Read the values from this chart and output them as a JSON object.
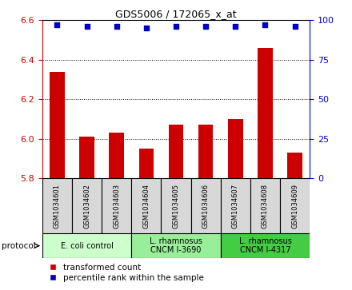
{
  "title": "GDS5006 / 172065_x_at",
  "samples": [
    "GSM1034601",
    "GSM1034602",
    "GSM1034603",
    "GSM1034604",
    "GSM1034605",
    "GSM1034606",
    "GSM1034607",
    "GSM1034608",
    "GSM1034609"
  ],
  "transformed_count": [
    6.34,
    6.01,
    6.03,
    5.95,
    6.07,
    6.07,
    6.1,
    6.46,
    5.93
  ],
  "percentile_rank": [
    97,
    96,
    96,
    95,
    96,
    96,
    96,
    97,
    96
  ],
  "bar_color": "#cc0000",
  "dot_color": "#0000cc",
  "ylim_left": [
    5.8,
    6.6
  ],
  "ylim_right": [
    0,
    100
  ],
  "yticks_left": [
    5.8,
    6.0,
    6.2,
    6.4,
    6.6
  ],
  "yticks_right": [
    0,
    25,
    50,
    75,
    100
  ],
  "groups": [
    {
      "label": "E. coli control",
      "indices": [
        0,
        1,
        2
      ],
      "color": "#ccffcc"
    },
    {
      "label": "L. rhamnosus\nCNCM I-3690",
      "indices": [
        3,
        4,
        5
      ],
      "color": "#99ee99"
    },
    {
      "label": "L. rhamnosus\nCNCM I-4317",
      "indices": [
        6,
        7,
        8
      ],
      "color": "#44cc44"
    }
  ],
  "legend_bar_label": "transformed count",
  "legend_dot_label": "percentile rank within the sample",
  "protocol_label": "protocol"
}
